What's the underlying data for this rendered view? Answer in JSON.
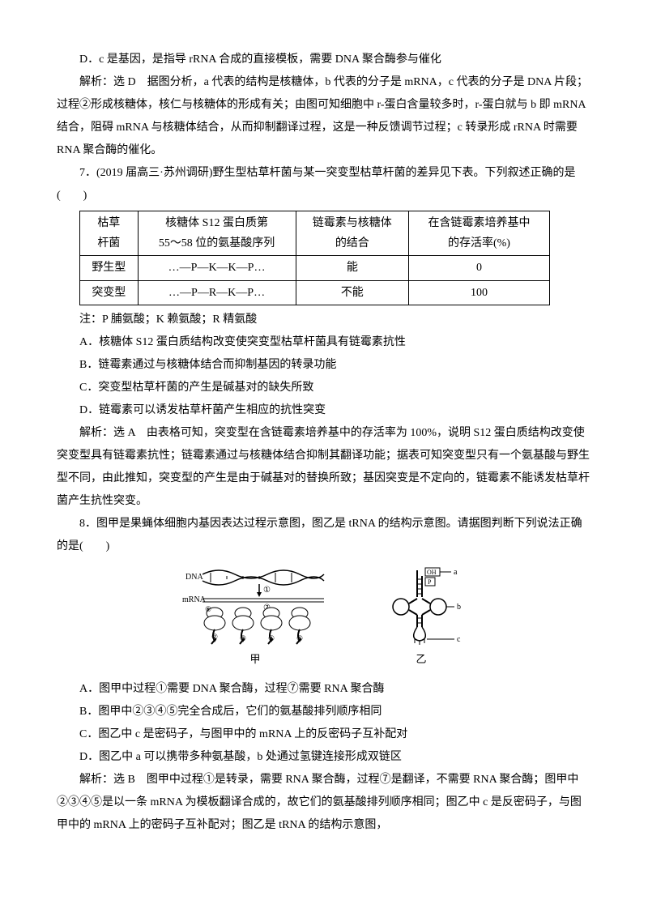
{
  "p1": "D．c 是基因，是指导 rRNA 合成的直接模板，需要 DNA 聚合酶参与催化",
  "p2": "解析：选 D　据图分析，a 代表的结构是核糖体，b 代表的分子是 mRNA，c 代表的分子是 DNA 片段；过程②形成核糖体，核仁与核糖体的形成有关；由图可知细胞中 r-蛋白含量较多时，r-蛋白就与 b 即 mRNA 结合，阻碍 mRNA 与核糖体结合，从而抑制翻译过程，这是一种反馈调节过程；c 转录形成 rRNA 时需要 RNA 聚合酶的催化。",
  "p3": "7．(2019 届高三·苏州调研)野生型枯草杆菌与某一突变型枯草杆菌的差异见下表。下列叙述正确的是(　　)",
  "table": {
    "headers": [
      "枯草\n杆菌",
      "核糖体 S12 蛋白质第\n55～58 位的氨基酸序列",
      "链霉素与核糖体\n的结合",
      "在含链霉素培养基中\n的存活率(%)"
    ],
    "rows": [
      [
        "野生型",
        "…—P—K—K—P…",
        "能",
        "0"
      ],
      [
        "突变型",
        "…—P—R—K—P…",
        "不能",
        "100"
      ]
    ]
  },
  "p4": "注：P 脯氨酸；K 赖氨酸；R 精氨酸",
  "p5": "A．核糖体 S12 蛋白质结构改变使突变型枯草杆菌具有链霉素抗性",
  "p6": "B．链霉素通过与核糖体结合而抑制基因的转录功能",
  "p7": "C．突变型枯草杆菌的产生是碱基对的缺失所致",
  "p8": "D．链霉素可以诱发枯草杆菌产生相应的抗性突变",
  "p9": "解析：选 A　由表格可知，突变型在含链霉素培养基中的存活率为 100%，说明 S12 蛋白质结构改变使突变型具有链霉素抗性；链霉素通过与核糖体结合抑制其翻译功能；据表可知突变型只有一个氨基酸与野生型不同，由此推知，突变型的产生是由于碱基对的替换所致；基因突变是不定向的，链霉素不能诱发枯草杆菌产生抗性突变。",
  "p10": "8．图甲是果蝇体细胞内基因表达过程示意图，图乙是 tRNA 的结构示意图。请据图判断下列说法正确的是(　　)",
  "diagram": {
    "left_labels": {
      "dna": "DNA",
      "mrna": "mRNA"
    },
    "left_nums": [
      "①",
      "②",
      "③",
      "④",
      "⑤",
      "⑥",
      "⑦"
    ],
    "right_labels": {
      "a": "a",
      "b": "b",
      "c": "c",
      "oh": "OH",
      "p": "P"
    },
    "caption_left": "甲",
    "caption_right": "乙"
  },
  "p11": "A．图甲中过程①需要 DNA 聚合酶，过程⑦需要 RNA 聚合酶",
  "p12": "B．图甲中②③④⑤完全合成后，它们的氨基酸排列顺序相同",
  "p13": "C．图乙中 c 是密码子，与图甲中的 mRNA 上的反密码子互补配对",
  "p14": "D．图乙中 a 可以携带多种氨基酸，b 处通过氢键连接形成双链区",
  "p15": "解析：选 B　图甲中过程①是转录，需要 RNA 聚合酶，过程⑦是翻译，不需要 RNA 聚合酶；图甲中②③④⑤是以一条 mRNA 为模板翻译合成的，故它们的氨基酸排列顺序相同；图乙中 c 是反密码子，与图甲中的 mRNA 上的密码子互补配对；图乙是 tRNA 的结构示意图，"
}
